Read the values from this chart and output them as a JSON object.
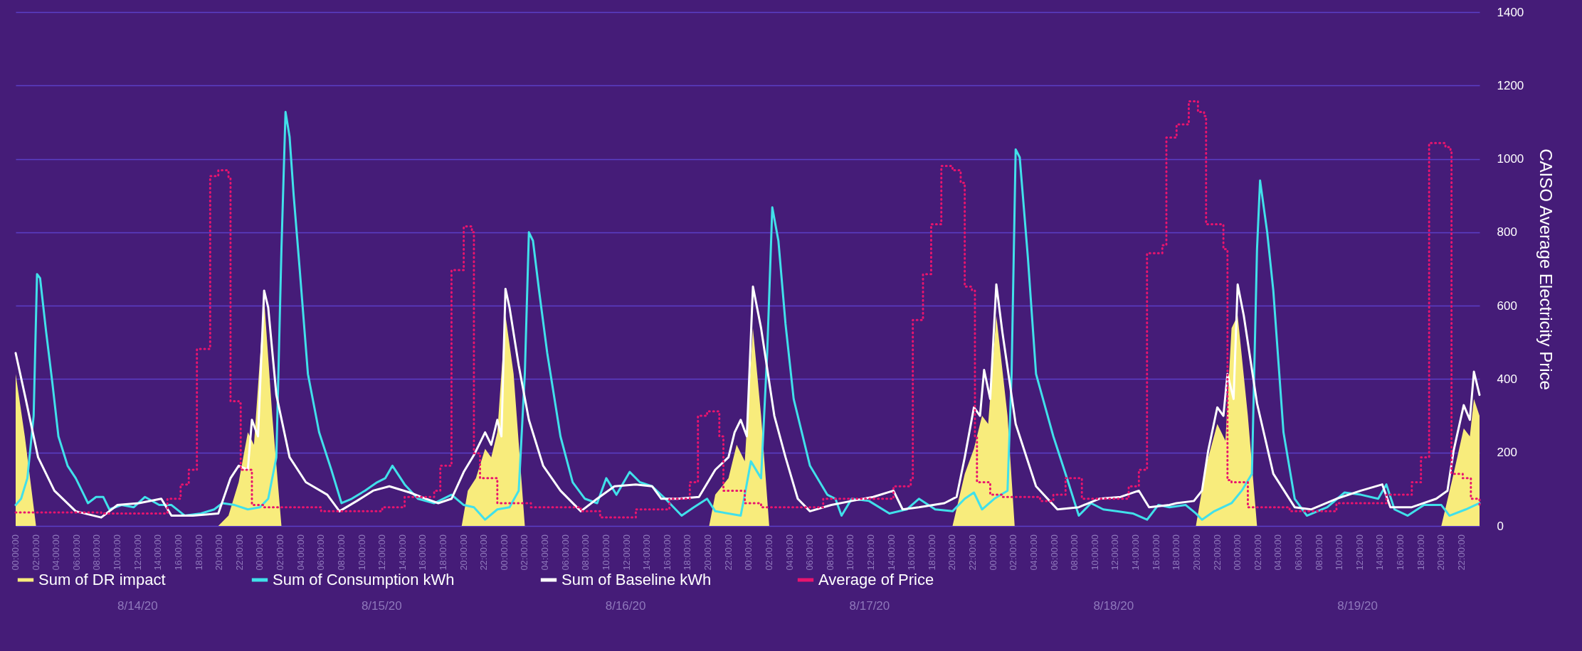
{
  "chart_data": {
    "type": "line",
    "ylabel": "CAISO Average Electricity Price",
    "xlim": [
      "--08-14T00:00",
      "--08-19T23:45"
    ],
    "ylim": [
      0,
      1400
    ],
    "yticks": [
      0,
      200,
      400,
      600,
      800,
      1000,
      1200,
      1400
    ],
    "grid": "y",
    "legend": "bottom",
    "annotations": [
      "8/14/20",
      "8/15/20",
      "8/16/20",
      "8/17/20",
      "8/18/20",
      "8/19/20"
    ],
    "xticks": [
      {
        "value": "--08-14T00:00",
        "label": "00:00:00"
      },
      {
        "value": "--08-14T02:00",
        "label": "02:00:00"
      },
      {
        "value": "--08-14T04:00",
        "label": "04:00:00"
      },
      {
        "value": "--08-14T06:00",
        "label": "06:00:00"
      },
      {
        "value": "--08-14T08:00",
        "label": "08:00:00"
      },
      {
        "value": "--08-14T10:00",
        "label": "10:00:00"
      },
      {
        "value": "--08-14T12:00",
        "label": "12:00:00"
      },
      {
        "value": "--08-14T14:00",
        "label": "14:00:00"
      },
      {
        "value": "--08-14T16:00",
        "label": "16:00:00"
      },
      {
        "value": "--08-14T18:00",
        "label": "18:00:00"
      },
      {
        "value": "--08-14T20:00",
        "label": "20:00:00"
      },
      {
        "value": "--08-14T22:00",
        "label": "22:00:00"
      },
      {
        "value": "--08-15T00:00",
        "label": "00:00:00"
      },
      {
        "value": "--08-15T02:00",
        "label": "02:00:00"
      },
      {
        "value": "--08-15T04:00",
        "label": "04:00:00"
      },
      {
        "value": "--08-15T06:00",
        "label": "06:00:00"
      },
      {
        "value": "--08-15T08:00",
        "label": "08:00:00"
      },
      {
        "value": "--08-15T10:00",
        "label": "10:00:00"
      },
      {
        "value": "--08-15T12:00",
        "label": "12:00:00"
      },
      {
        "value": "--08-15T14:00",
        "label": "14:00:00"
      },
      {
        "value": "--08-15T16:00",
        "label": "16:00:00"
      },
      {
        "value": "--08-15T18:00",
        "label": "18:00:00"
      },
      {
        "value": "--08-15T20:00",
        "label": "20:00:00"
      },
      {
        "value": "--08-15T22:00",
        "label": "22:00:00"
      },
      {
        "value": "--08-16T00:00",
        "label": "00:00:00"
      },
      {
        "value": "--08-16T02:00",
        "label": "02:00:00"
      },
      {
        "value": "--08-16T04:00",
        "label": "04:00:00"
      },
      {
        "value": "--08-16T06:00",
        "label": "06:00:00"
      },
      {
        "value": "--08-16T08:00",
        "label": "08:00:00"
      },
      {
        "value": "--08-16T10:00",
        "label": "10:00:00"
      },
      {
        "value": "--08-16T12:00",
        "label": "12:00:00"
      },
      {
        "value": "--08-16T14:00",
        "label": "14:00:00"
      },
      {
        "value": "--08-16T16:00",
        "label": "16:00:00"
      },
      {
        "value": "--08-16T18:00",
        "label": "18:00:00"
      },
      {
        "value": "--08-16T20:00",
        "label": "20:00:00"
      },
      {
        "value": "--08-16T22:00",
        "label": "22:00:00"
      },
      {
        "value": "--08-17T00:00",
        "label": "00:00:00"
      },
      {
        "value": "--08-17T02:00",
        "label": "02:00:00"
      },
      {
        "value": "--08-17T04:00",
        "label": "04:00:00"
      },
      {
        "value": "--08-17T06:00",
        "label": "06:00:00"
      },
      {
        "value": "--08-17T08:00",
        "label": "08:00:00"
      },
      {
        "value": "--08-17T10:00",
        "label": "10:00:00"
      },
      {
        "value": "--08-17T12:00",
        "label": "12:00:00"
      },
      {
        "value": "--08-17T14:00",
        "label": "14:00:00"
      },
      {
        "value": "--08-17T16:00",
        "label": "16:00:00"
      },
      {
        "value": "--08-17T18:00",
        "label": "18:00:00"
      },
      {
        "value": "--08-17T20:00",
        "label": "20:00:00"
      },
      {
        "value": "--08-17T22:00",
        "label": "22:00:00"
      },
      {
        "value": "--08-18T00:00",
        "label": "00:00:00"
      },
      {
        "value": "--08-18T02:00",
        "label": "02:00:00"
      },
      {
        "value": "--08-18T04:00",
        "label": "04:00:00"
      },
      {
        "value": "--08-18T06:00",
        "label": "06:00:00"
      },
      {
        "value": "--08-18T08:00",
        "label": "08:00:00"
      },
      {
        "value": "--08-18T10:00",
        "label": "10:00:00"
      },
      {
        "value": "--08-18T12:00",
        "label": "12:00:00"
      },
      {
        "value": "--08-18T14:00",
        "label": "14:00:00"
      },
      {
        "value": "--08-18T16:00",
        "label": "16:00:00"
      },
      {
        "value": "--08-18T18:00",
        "label": "18:00:00"
      },
      {
        "value": "--08-18T20:00",
        "label": "20:00:00"
      },
      {
        "value": "--08-18T22:00",
        "label": "22:00:00"
      },
      {
        "value": "--08-19T00:00",
        "label": "00:00:00"
      },
      {
        "value": "--08-19T02:00",
        "label": "02:00:00"
      },
      {
        "value": "--08-19T04:00",
        "label": "04:00:00"
      },
      {
        "value": "--08-19T06:00",
        "label": "06:00:00"
      },
      {
        "value": "--08-19T08:00",
        "label": "08:00:00"
      },
      {
        "value": "--08-19T10:00",
        "label": "10:00:00"
      },
      {
        "value": "--08-19T12:00",
        "label": "12:00:00"
      },
      {
        "value": "--08-19T14:00",
        "label": "14:00:00"
      },
      {
        "value": "--08-19T16:00",
        "label": "16:00:00"
      },
      {
        "value": "--08-19T18:00",
        "label": "18:00:00"
      },
      {
        "value": "--08-19T20:00",
        "label": "20:00:00"
      },
      {
        "value": "--08-19T22:00",
        "label": "22:00:00"
      }
    ],
    "series": [
      {
        "name": "Sum of DR impact",
        "type": "area",
        "color": "#f8ec7c",
        "x": [
          "--08-14T00:00",
          "--08-14T00:54",
          "--08-14T02:00",
          "--08-14T19:54",
          "--08-14T20:54",
          "--08-14T21:54",
          "--08-14T22:48",
          "--08-14T23:24",
          "--08-15T00:24",
          "--08-15T01:12",
          "--08-15T02:06",
          "--08-15T19:48",
          "--08-15T20:24",
          "--08-15T21:12",
          "--08-15T22:06",
          "--08-15T22:42",
          "--08-15T23:18",
          "--08-16T00:06",
          "--08-16T00:54",
          "--08-16T02:00",
          "--08-16T20:06",
          "--08-16T20:42",
          "--08-16T22:00",
          "--08-16T22:48",
          "--08-16T23:36",
          "--08-17T00:24",
          "--08-17T01:12",
          "--08-17T02:00",
          "--08-17T20:00",
          "--08-17T21:12",
          "--08-17T22:06",
          "--08-17T22:54",
          "--08-17T23:30",
          "--08-18T00:18",
          "--08-18T01:24",
          "--08-18T02:06",
          "--08-18T19:54",
          "--08-18T20:54",
          "--08-18T22:00",
          "--08-18T22:48",
          "--08-18T23:24",
          "--08-19T00:00",
          "--08-19T01:00",
          "--08-19T01:54",
          "--08-19T20:00",
          "--08-19T21:12",
          "--08-19T22:12",
          "--08-19T22:48",
          "--08-19T23:12",
          "--08-19T23:45"
        ],
        "values": [
          414,
          244,
          0,
          0,
          28,
          119,
          255,
          221,
          618,
          300,
          0,
          0,
          96,
          130,
          210,
          187,
          255,
          573,
          414,
          0,
          0,
          85,
          130,
          221,
          176,
          539,
          300,
          0,
          0,
          142,
          210,
          300,
          278,
          573,
          300,
          0,
          0,
          164,
          278,
          232,
          539,
          573,
          300,
          0,
          0,
          142,
          266,
          244,
          346,
          300
        ]
      },
      {
        "name": "Sum of Consumption kWh",
        "color": "#41e0ea",
        "x": [
          "--08-14T00:00",
          "--08-14T00:32",
          "--08-14T01:09",
          "--08-14T01:46",
          "--08-14T02:06",
          "--08-14T02:24",
          "--08-14T03:00",
          "--08-14T03:36",
          "--08-14T04:12",
          "--08-14T05:06",
          "--08-14T05:54",
          "--08-14T06:42",
          "--08-14T07:06",
          "--08-14T07:54",
          "--08-14T08:36",
          "--08-14T09:12",
          "--08-14T10:24",
          "--08-14T11:36",
          "--08-14T12:42",
          "--08-14T14:06",
          "--08-14T15:18",
          "--08-14T16:36",
          "--08-14T18:12",
          "--08-14T19:30",
          "--08-14T20:18",
          "--08-14T21:30",
          "--08-14T22:48",
          "--08-15T00:00",
          "--08-15T00:48",
          "--08-15T01:36",
          "--08-15T02:06",
          "--08-15T02:30",
          "--08-15T02:54",
          "--08-15T03:18",
          "--08-15T03:54",
          "--08-15T04:42",
          "--08-15T05:48",
          "--08-15T07:00",
          "--08-15T08:00",
          "--08-15T09:00",
          "--08-15T10:18",
          "--08-15T11:30",
          "--08-15T12:18",
          "--08-15T13:00",
          "--08-15T14:12",
          "--08-15T15:30",
          "--08-15T17:06",
          "--08-15T18:48",
          "--08-15T20:00",
          "--08-15T21:00",
          "--08-15T22:06",
          "--08-15T23:18",
          "--08-16T00:30",
          "--08-16T01:24",
          "--08-16T02:00",
          "--08-16T02:24",
          "--08-16T02:48",
          "--08-16T03:24",
          "--08-16T04:12",
          "--08-16T05:30",
          "--08-16T06:42",
          "--08-16T07:54",
          "--08-16T09:06",
          "--08-16T10:00",
          "--08-16T11:00",
          "--08-16T12:18",
          "--08-16T13:18",
          "--08-16T14:30",
          "--08-16T15:48",
          "--08-16T17:24",
          "--08-16T18:36",
          "--08-16T19:54",
          "--08-16T20:42",
          "--08-16T23:12",
          "--08-16T23:36",
          "--08-17T00:12",
          "--08-17T01:12",
          "--08-17T01:48",
          "--08-17T02:18",
          "--08-17T02:54",
          "--08-17T03:36",
          "--08-17T04:24",
          "--08-17T06:00",
          "--08-17T07:42",
          "--08-17T08:30",
          "--08-17T09:06",
          "--08-17T10:06",
          "--08-17T11:48",
          "--08-17T13:48",
          "--08-17T15:30",
          "--08-17T16:42",
          "--08-17T18:18",
          "--08-17T20:00",
          "--08-17T21:12",
          "--08-17T22:06",
          "--08-17T22:54",
          "--08-18T00:06",
          "--08-18T01:24",
          "--08-18T01:48",
          "--08-18T02:12",
          "--08-18T02:36",
          "--08-18T03:24",
          "--08-18T04:12",
          "--08-18T05:54",
          "--08-18T07:06",
          "--08-18T08:24",
          "--08-18T09:36",
          "--08-18T10:48",
          "--08-18T12:06",
          "--08-18T13:42",
          "--08-18T15:06",
          "--08-18T16:12",
          "--08-18T17:18",
          "--08-18T18:54",
          "--08-18T19:54",
          "--08-18T20:30",
          "--08-18T21:42",
          "--08-18T23:24",
          "--08-19T00:24",
          "--08-19T01:24",
          "--08-19T01:54",
          "--08-19T02:12",
          "--08-19T02:54",
          "--08-19T03:30",
          "--08-19T04:30",
          "--08-19T05:36",
          "--08-19T06:48",
          "--08-19T08:48",
          "--08-19T10:30",
          "--08-19T12:06",
          "--08-19T13:48",
          "--08-19T14:36",
          "--08-19T15:24",
          "--08-19T16:42",
          "--08-19T18:18",
          "--08-19T20:00",
          "--08-19T20:48",
          "--08-19T22:24",
          "--08-19T23:45"
        ],
        "values": [
          57,
          74,
          130,
          300,
          686,
          675,
          527,
          391,
          244,
          164,
          130,
          85,
          62,
          79,
          79,
          45,
          57,
          51,
          79,
          57,
          57,
          28,
          34,
          45,
          62,
          57,
          45,
          51,
          74,
          187,
          754,
          1128,
          1060,
          901,
          697,
          414,
          255,
          153,
          62,
          74,
          96,
          119,
          130,
          164,
          113,
          74,
          62,
          85,
          57,
          51,
          17,
          45,
          51,
          96,
          414,
          800,
          777,
          641,
          471,
          244,
          119,
          74,
          62,
          130,
          85,
          147,
          119,
          108,
          74,
          28,
          51,
          74,
          40,
          28,
          85,
          176,
          130,
          471,
          868,
          777,
          550,
          346,
          164,
          85,
          74,
          28,
          74,
          68,
          34,
          45,
          74,
          45,
          40,
          74,
          91,
          45,
          74,
          96,
          414,
          1026,
          1004,
          731,
          414,
          244,
          142,
          28,
          62,
          45,
          40,
          34,
          17,
          57,
          51,
          57,
          34,
          17,
          40,
          62,
          96,
          142,
          754,
          941,
          800,
          641,
          255,
          74,
          28,
          51,
          91,
          85,
          74,
          113,
          45,
          28,
          57,
          57,
          28,
          45,
          62
        ]
      },
      {
        "name": "Sum of Baseline kWh",
        "color": "#ffffff",
        "x": [
          "--08-14T00:00",
          "--08-14T00:54",
          "--08-14T02:12",
          "--08-14T03:48",
          "--08-14T05:54",
          "--08-14T08:24",
          "--08-14T10:00",
          "--08-14T12:06",
          "--08-14T14:18",
          "--08-14T15:18",
          "--08-14T17:24",
          "--08-14T19:54",
          "--08-14T21:06",
          "--08-14T21:54",
          "--08-14T22:48",
          "--08-14T23:12",
          "--08-14T23:48",
          "--08-15T00:24",
          "--08-15T00:48",
          "--08-15T01:36",
          "--08-15T02:54",
          "--08-15T04:30",
          "--08-15T06:36",
          "--08-15T07:48",
          "--08-15T09:30",
          "--08-15T11:06",
          "--08-15T12:42",
          "--08-15T14:42",
          "--08-15T16:18",
          "--08-15T17:30",
          "--08-15T18:48",
          "--08-15T20:00",
          "--08-15T21:00",
          "--08-15T22:06",
          "--08-15T22:42",
          "--08-15T23:18",
          "--08-15T23:42",
          "--08-16T00:06",
          "--08-16T00:30",
          "--08-16T01:24",
          "--08-16T02:24",
          "--08-16T03:48",
          "--08-16T05:30",
          "--08-16T07:30",
          "--08-16T09:06",
          "--08-16T10:48",
          "--08-16T12:54",
          "--08-16T14:30",
          "--08-16T15:24",
          "--08-16T17:00",
          "--08-16T19:06",
          "--08-16T20:42",
          "--08-16T22:00",
          "--08-16T22:36",
          "--08-16T23:12",
          "--08-16T23:48",
          "--08-17T00:24",
          "--08-17T01:12",
          "--08-17T02:30",
          "--08-17T03:36",
          "--08-17T04:48",
          "--08-17T06:00",
          "--08-17T08:06",
          "--08-17T10:06",
          "--08-17T12:12",
          "--08-17T14:12",
          "--08-17T15:06",
          "--08-17T16:42",
          "--08-17T19:12",
          "--08-17T20:24",
          "--08-17T21:12",
          "--08-17T22:06",
          "--08-17T22:42",
          "--08-17T23:06",
          "--08-17T23:42",
          "--08-18T00:18",
          "--08-18T00:54",
          "--08-18T02:12",
          "--08-18T04:12",
          "--08-18T06:18",
          "--08-18T08:24",
          "--08-18T10:24",
          "--08-18T12:30",
          "--08-18T14:18",
          "--08-18T15:18",
          "--08-18T17:18",
          "--08-18T18:00",
          "--08-18T19:42",
          "--08-18T20:30",
          "--08-18T21:06",
          "--08-18T22:00",
          "--08-18T22:36",
          "--08-18T23:00",
          "--08-18T23:36",
          "--08-19T00:00",
          "--08-19T00:36",
          "--08-19T01:54",
          "--08-19T03:30",
          "--08-19T05:36",
          "--08-19T07:12",
          "--08-19T09:42",
          "--08-19T12:06",
          "--08-19T14:12",
          "--08-19T15:00",
          "--08-19T17:06",
          "--08-19T19:30",
          "--08-19T20:36",
          "--08-19T21:12",
          "--08-19T22:12",
          "--08-19T22:48",
          "--08-19T23:12",
          "--08-19T23:45"
        ],
        "values": [
          471,
          357,
          187,
          96,
          40,
          23,
          57,
          62,
          74,
          28,
          28,
          34,
          130,
          164,
          153,
          289,
          244,
          641,
          595,
          357,
          187,
          119,
          85,
          40,
          68,
          96,
          108,
          91,
          74,
          62,
          74,
          147,
          193,
          255,
          221,
          289,
          244,
          646,
          595,
          437,
          289,
          164,
          96,
          40,
          74,
          108,
          113,
          108,
          74,
          74,
          79,
          153,
          187,
          255,
          289,
          244,
          652,
          539,
          300,
          187,
          74,
          40,
          57,
          68,
          79,
          96,
          45,
          51,
          62,
          79,
          187,
          323,
          300,
          425,
          346,
          658,
          527,
          278,
          108,
          45,
          51,
          74,
          79,
          96,
          51,
          57,
          62,
          68,
          96,
          204,
          323,
          300,
          414,
          346,
          658,
          573,
          334,
          142,
          51,
          45,
          74,
          96,
          113,
          51,
          51,
          74,
          96,
          204,
          329,
          289,
          420,
          357
        ]
      },
      {
        "name": "Average of Price",
        "type": "step",
        "line_style": "dotted",
        "color": "#e8146e",
        "x": [
          "--08-14T00:00",
          "--08-14T08:24",
          "--08-14T14:54",
          "--08-14T16:12",
          "--08-14T17:00",
          "--08-14T17:48",
          "--08-14T19:06",
          "--08-14T19:54",
          "--08-14T20:54",
          "--08-14T21:06",
          "--08-14T21:54",
          "--08-14T22:06",
          "--08-14T23:12",
          "--08-15T00:24",
          "--08-15T06:00",
          "--08-15T12:00",
          "--08-15T14:12",
          "--08-15T17:06",
          "--08-15T17:42",
          "--08-15T18:48",
          "--08-15T20:00",
          "--08-15T20:48",
          "--08-15T21:00",
          "--08-15T21:36",
          "--08-15T23:18",
          "--08-16T02:36",
          "--08-16T07:30",
          "--08-16T09:24",
          "--08-16T12:54",
          "--08-16T16:12",
          "--08-16T18:12",
          "--08-16T19:00",
          "--08-16T19:54",
          "--08-16T21:06",
          "--08-16T21:30",
          "--08-16T23:36",
          "--08-17T01:12",
          "--08-17T06:00",
          "--08-17T07:18",
          "--08-17T14:12",
          "--08-17T15:54",
          "--08-17T16:06",
          "--08-17T17:06",
          "--08-17T17:54",
          "--08-17T18:54",
          "--08-17T20:00",
          "--08-17T20:48",
          "--08-17T21:12",
          "--08-17T21:54",
          "--08-17T22:12",
          "--08-17T22:24",
          "--08-17T23:42",
          "--08-18T00:54",
          "--08-18T04:36",
          "--08-18T05:54",
          "--08-18T07:06",
          "--08-18T08:42",
          "--08-18T11:12",
          "--08-18T13:18",
          "--08-18T14:18",
          "--08-18T15:06",
          "--08-18T16:36",
          "--08-18T17:00",
          "--08-18T18:00",
          "--08-18T19:12",
          "--08-18T20:06",
          "--08-18T20:42",
          "--08-18T20:54",
          "--08-18T22:36",
          "--08-18T23:00",
          "--08-18T23:24",
          "--08-19T01:00",
          "--08-19T05:06",
          "--08-19T09:42",
          "--08-19T14:36",
          "--08-19T17:06",
          "--08-19T18:00",
          "--08-19T18:48",
          "--08-19T20:24",
          "--08-19T20:54",
          "--08-19T21:00",
          "--08-19T22:06",
          "--08-19T22:54",
          "--08-19T23:45"
        ],
        "values": [
          37,
          34,
          74,
          113,
          153,
          482,
          953,
          969,
          947,
          340,
          334,
          153,
          57,
          51,
          40,
          51,
          79,
          96,
          164,
          697,
          816,
          800,
          198,
          130,
          62,
          51,
          40,
          23,
          45,
          74,
          119,
          300,
          312,
          244,
          96,
          62,
          51,
          51,
          74,
          108,
          130,
          561,
          686,
          822,
          981,
          969,
          935,
          652,
          641,
          244,
          119,
          85,
          79,
          68,
          85,
          130,
          74,
          74,
          108,
          153,
          743,
          765,
          1058,
          1094,
          1157,
          1128,
          1117,
          822,
          754,
          125,
          119,
          51,
          40,
          62,
          85,
          119,
          187,
          1043,
          1032,
          1021,
          142,
          130,
          74,
          57
        ]
      }
    ]
  }
}
